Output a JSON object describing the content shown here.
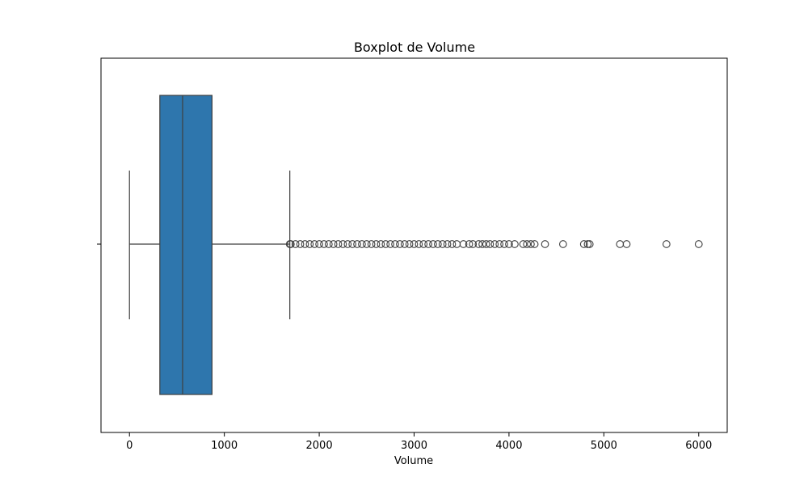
{
  "chart_data": {
    "type": "boxplot",
    "title": "Boxplot de Volume",
    "xlabel": "Volume",
    "ylabel": "",
    "orientation": "horizontal",
    "xlim": [
      -300,
      6300
    ],
    "xticks": [
      0,
      1000,
      2000,
      3000,
      4000,
      5000,
      6000
    ],
    "box": {
      "min": 0,
      "q1": 320,
      "median": 560,
      "q3": 870,
      "whisker_low": 0,
      "whisker_high": 1690
    },
    "outliers": [
      1690,
      1700,
      1750,
      1800,
      1850,
      1900,
      1950,
      2000,
      2050,
      2100,
      2150,
      2200,
      2250,
      2300,
      2350,
      2400,
      2450,
      2500,
      2550,
      2600,
      2650,
      2700,
      2750,
      2800,
      2850,
      2900,
      2950,
      3000,
      3050,
      3100,
      3150,
      3200,
      3250,
      3300,
      3350,
      3400,
      3450,
      3520,
      3580,
      3620,
      3680,
      3720,
      3760,
      3800,
      3850,
      3900,
      3950,
      4000,
      4060,
      4150,
      4190,
      4230,
      4270,
      4380,
      4570,
      4790,
      4830,
      4850,
      5170,
      5240,
      5660,
      6000
    ],
    "colors": {
      "box_fill": "#2e76ad",
      "line": "#3f3f3f",
      "outlier_edge": "#3f3f3f"
    }
  }
}
